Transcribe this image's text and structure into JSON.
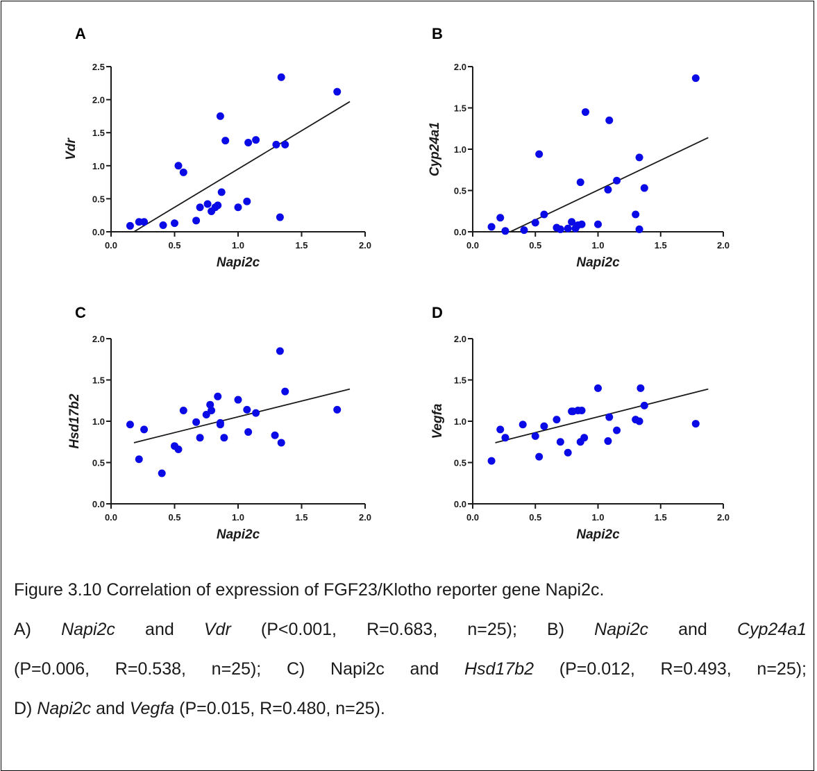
{
  "chart_data": [
    {
      "type": "scatter",
      "panel_label": "A",
      "xlabel": "Napi2c",
      "ylabel": "Vdr",
      "xlim": [
        0,
        2
      ],
      "ylim": [
        0,
        2.5
      ],
      "xticks": [
        "0.0",
        "0.5",
        "1.0",
        "1.5",
        "2.0"
      ],
      "yticks": [
        "0.0",
        "0.5",
        "1.0",
        "1.5",
        "2.0",
        "2.5"
      ],
      "points": {
        "x": [
          0.15,
          0.22,
          0.26,
          0.41,
          0.5,
          0.53,
          0.57,
          0.67,
          0.7,
          0.76,
          0.79,
          0.82,
          0.84,
          0.86,
          0.87,
          0.9,
          1.0,
          1.07,
          1.08,
          1.14,
          1.3,
          1.33,
          1.34,
          1.37,
          1.78
        ],
        "y": [
          0.09,
          0.15,
          0.15,
          0.1,
          0.13,
          1.0,
          0.9,
          0.17,
          0.37,
          0.42,
          0.31,
          0.37,
          0.4,
          1.75,
          0.6,
          1.38,
          0.37,
          0.46,
          1.35,
          1.39,
          1.32,
          0.22,
          2.34,
          1.32,
          2.12
        ]
      },
      "fit": {
        "x": [
          0.18,
          1.88
        ],
        "y": [
          -0.02,
          1.97
        ]
      },
      "marker_color": "#0a0ae6",
      "line_color": "#1a1a1a"
    },
    {
      "type": "scatter",
      "panel_label": "B",
      "xlabel": "Napi2c",
      "ylabel": "Cyp24a1",
      "xlim": [
        0,
        2
      ],
      "ylim": [
        0,
        2
      ],
      "xticks": [
        "0.0",
        "0.5",
        "1.0",
        "1.5",
        "2.0"
      ],
      "yticks": [
        "0.0",
        "0.5",
        "1.0",
        "1.5",
        "2.0"
      ],
      "points": {
        "x": [
          0.15,
          0.22,
          0.26,
          0.41,
          0.5,
          0.53,
          0.57,
          0.67,
          0.7,
          0.76,
          0.79,
          0.82,
          0.84,
          0.86,
          0.87,
          0.9,
          1.0,
          1.08,
          1.09,
          1.15,
          1.3,
          1.33,
          1.33,
          1.37,
          1.78
        ],
        "y": [
          0.06,
          0.17,
          0.01,
          0.02,
          0.11,
          0.94,
          0.21,
          0.05,
          0.03,
          0.04,
          0.12,
          0.04,
          0.08,
          0.6,
          0.09,
          1.45,
          0.09,
          0.51,
          1.35,
          0.62,
          0.21,
          0.03,
          0.9,
          0.53,
          1.86
        ]
      },
      "fit": {
        "x": [
          0.3,
          1.88
        ],
        "y": [
          0.0,
          1.14
        ]
      },
      "marker_color": "#0a0ae6",
      "line_color": "#1a1a1a"
    },
    {
      "type": "scatter",
      "panel_label": "C",
      "xlabel": "Napi2c",
      "ylabel": "Hsd17b2",
      "xlim": [
        0,
        2
      ],
      "ylim": [
        0,
        2
      ],
      "xticks": [
        "0.0",
        "0.5",
        "1.0",
        "1.5",
        "2.0"
      ],
      "yticks": [
        "0.0",
        "0.5",
        "1.0",
        "1.5",
        "2.0"
      ],
      "points": {
        "x": [
          0.15,
          0.22,
          0.26,
          0.4,
          0.5,
          0.53,
          0.57,
          0.67,
          0.7,
          0.75,
          0.78,
          0.79,
          0.84,
          0.86,
          0.86,
          0.89,
          1.0,
          1.07,
          1.08,
          1.14,
          1.29,
          1.33,
          1.34,
          1.37,
          1.78
        ],
        "y": [
          0.96,
          0.54,
          0.9,
          0.37,
          0.7,
          0.66,
          1.13,
          0.99,
          0.8,
          1.08,
          1.2,
          1.13,
          1.3,
          0.98,
          0.96,
          0.8,
          1.26,
          1.14,
          0.87,
          1.1,
          0.83,
          1.85,
          0.74,
          1.36,
          1.14
        ]
      },
      "fit": {
        "x": [
          0.18,
          1.88
        ],
        "y": [
          0.74,
          1.39
        ]
      },
      "marker_color": "#0a0ae6",
      "line_color": "#1a1a1a"
    },
    {
      "type": "scatter",
      "panel_label": "D",
      "xlabel": "Napi2c",
      "ylabel": "Vegfa",
      "xlim": [
        0,
        2
      ],
      "ylim": [
        0,
        2
      ],
      "xticks": [
        "0.0",
        "0.5",
        "1.0",
        "1.5",
        "2.0"
      ],
      "yticks": [
        "0.0",
        "0.5",
        "1.0",
        "1.5",
        "2.0"
      ],
      "points": {
        "x": [
          0.15,
          0.22,
          0.26,
          0.4,
          0.5,
          0.53,
          0.57,
          0.67,
          0.7,
          0.76,
          0.79,
          0.8,
          0.84,
          0.86,
          0.87,
          0.89,
          1.0,
          1.08,
          1.09,
          1.15,
          1.3,
          1.33,
          1.34,
          1.37,
          1.78
        ],
        "y": [
          0.52,
          0.9,
          0.8,
          0.96,
          0.82,
          0.57,
          0.94,
          1.02,
          0.75,
          0.62,
          1.12,
          1.12,
          1.13,
          0.75,
          1.13,
          0.8,
          1.4,
          0.76,
          1.05,
          0.89,
          1.02,
          1.0,
          1.4,
          1.19,
          0.97
        ]
      },
      "fit": {
        "x": [
          0.18,
          1.88
        ],
        "y": [
          0.74,
          1.39
        ]
      },
      "marker_color": "#0a0ae6",
      "line_color": "#1a1a1a"
    }
  ],
  "caption": {
    "title": "Figure 3.10 Correlation of expression of FGF23/Klotho reporter gene Napi2c.",
    "line1": [
      {
        "t": "A) ",
        "i": false
      },
      {
        "t": "Napi2c",
        "i": true
      },
      {
        "t": " and ",
        "i": false
      },
      {
        "t": "Vdr",
        "i": true
      },
      {
        "t": " (P<0.001, R=0.683, n=25); B) ",
        "i": false
      },
      {
        "t": "Napi2c",
        "i": true
      },
      {
        "t": " and ",
        "i": false
      },
      {
        "t": "Cyp24a1",
        "i": true
      }
    ],
    "line2": [
      {
        "t": "(P=0.006, R=0.538, n=25); C) Napi2c and ",
        "i": false
      },
      {
        "t": "Hsd17b2",
        "i": true
      },
      {
        "t": " (P=0.012, R=0.493, n=25);",
        "i": false
      }
    ],
    "line3": [
      {
        "t": "D) ",
        "i": false
      },
      {
        "t": "Napi2c",
        "i": true
      },
      {
        "t": " and ",
        "i": false
      },
      {
        "t": "Vegfa",
        "i": true
      },
      {
        "t": " (P=0.015, R=0.480, n=25).",
        "i": false
      }
    ]
  }
}
